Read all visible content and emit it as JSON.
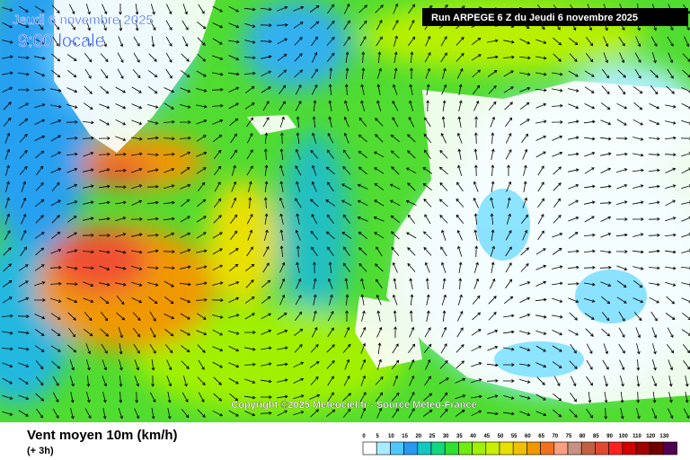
{
  "header": {
    "date": "Jeudi 6 novembre 2025",
    "time": "9:00 locale",
    "run": "Run ARPEGE 6 Z du Jeudi 6 novembre 2025"
  },
  "copyright": "Copyright ©2025 Meteociel.fr - Source Meteo-France",
  "legend": {
    "title": "Vent moyen 10m (km/h)",
    "step": "(+ 3h)",
    "scale": [
      {
        "value": 0,
        "color": "#ffffff"
      },
      {
        "value": 5,
        "color": "#a8ecff"
      },
      {
        "value": 10,
        "color": "#50c8ff"
      },
      {
        "value": 15,
        "color": "#2898f0"
      },
      {
        "value": 20,
        "color": "#10c8c0"
      },
      {
        "value": 25,
        "color": "#10d880"
      },
      {
        "value": 30,
        "color": "#30e030"
      },
      {
        "value": 35,
        "color": "#70ec10"
      },
      {
        "value": 40,
        "color": "#a0f000"
      },
      {
        "value": 45,
        "color": "#c8f000"
      },
      {
        "value": 50,
        "color": "#e8e000"
      },
      {
        "value": 55,
        "color": "#f0c000"
      },
      {
        "value": 60,
        "color": "#f09800"
      },
      {
        "value": 65,
        "color": "#f07020"
      },
      {
        "value": 70,
        "color": "#f8a080"
      },
      {
        "value": 75,
        "color": "#c89080"
      },
      {
        "value": 80,
        "color": "#c06040"
      },
      {
        "value": 85,
        "color": "#e04830"
      },
      {
        "value": 90,
        "color": "#ff2020"
      },
      {
        "value": 100,
        "color": "#d00000"
      },
      {
        "value": 110,
        "color": "#a00000"
      },
      {
        "value": 120,
        "color": "#700000"
      },
      {
        "value": 130,
        "color": "#500050"
      }
    ]
  }
}
